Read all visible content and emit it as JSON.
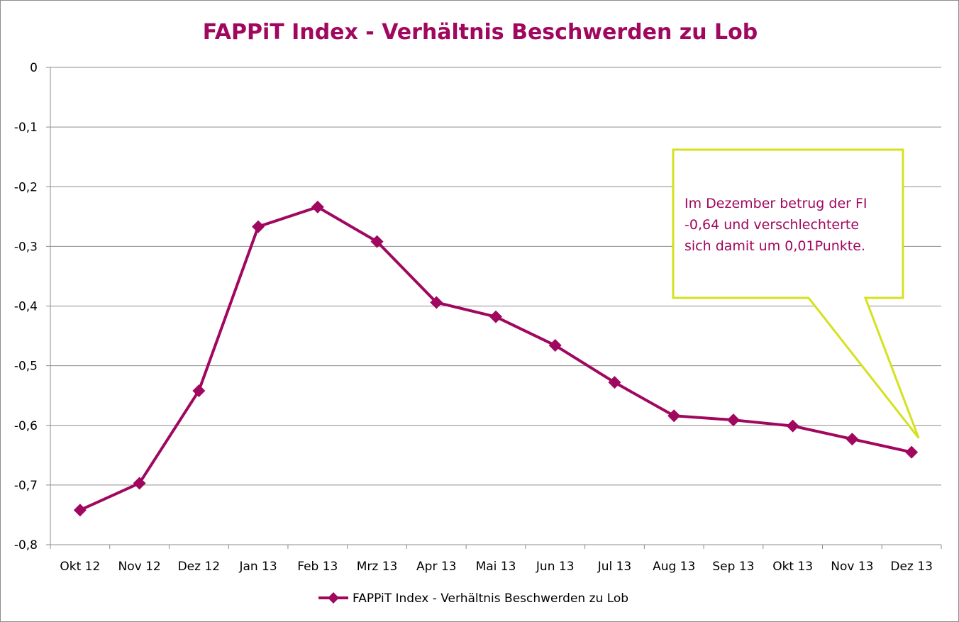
{
  "colors": {
    "series": "#a0075f",
    "title": "#a0075f",
    "gridline": "#8c8c8c",
    "callout_border": "#d4e21e",
    "callout_text": "#a0075f"
  },
  "chart_data": {
    "type": "line",
    "title": "FAPPiT Index - Verhältnis Beschwerden zu Lob",
    "xlabel": "",
    "ylabel": "",
    "ylim": [
      -0.8,
      0
    ],
    "yticks": [
      "0",
      "-0,1",
      "-0,2",
      "-0,3",
      "-0,4",
      "-0,5",
      "-0,6",
      "-0,7",
      "-0,8"
    ],
    "ytick_values": [
      0,
      -0.1,
      -0.2,
      -0.3,
      -0.4,
      -0.5,
      -0.6,
      -0.7,
      -0.8
    ],
    "grid": true,
    "legend_position": "bottom",
    "marker": "diamond",
    "categories": [
      "Okt 12",
      "Nov 12",
      "Dez 12",
      "Jan 13",
      "Feb 13",
      "Mrz 13",
      "Apr 13",
      "Mai 13",
      "Jun 13",
      "Jul 13",
      "Aug 13",
      "Sep 13",
      "Okt 13",
      "Nov 13",
      "Dez 13"
    ],
    "series": [
      {
        "name": "FAPPiT Index - Verhältnis Beschwerden zu Lob",
        "values": [
          -0.742,
          -0.697,
          -0.542,
          -0.267,
          -0.234,
          -0.292,
          -0.394,
          -0.418,
          -0.466,
          -0.528,
          -0.584,
          -0.591,
          -0.601,
          -0.623,
          -0.645
        ]
      }
    ],
    "annotation": {
      "lines": [
        "Im Dezember betrug der FI",
        "-0,64 und verschlechterte",
        "sich damit um 0,01Punkte."
      ],
      "points_to": "Dez 13"
    }
  }
}
